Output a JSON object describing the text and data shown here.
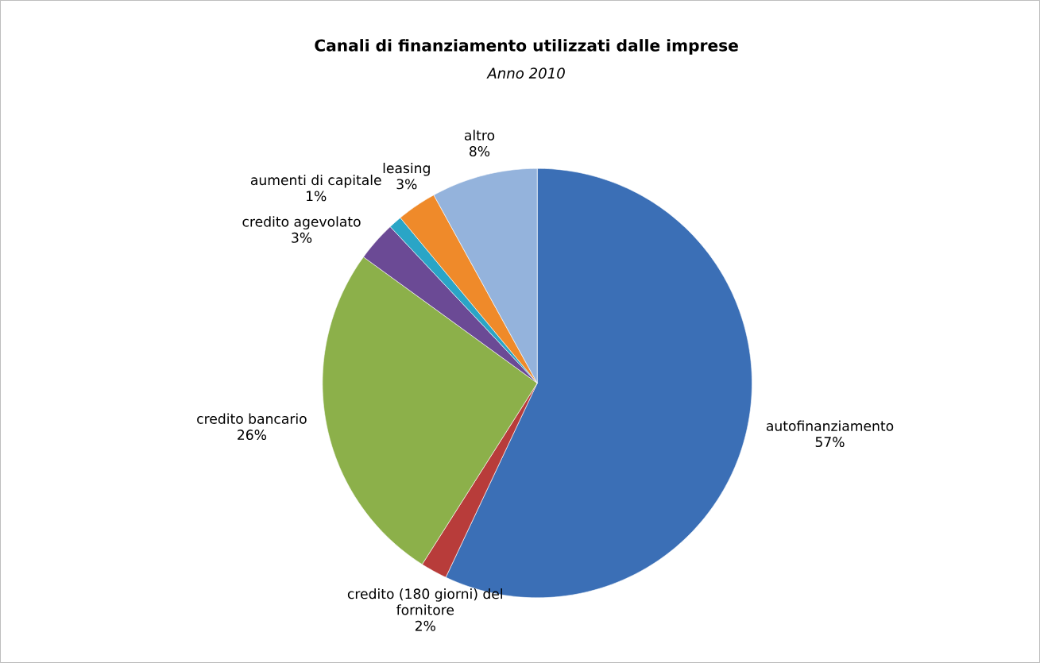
{
  "chart_data": {
    "type": "pie",
    "title": "Canali di finanziamento utilizzati dalle imprese",
    "subtitle": "Anno 2010",
    "categories": [
      "autofinanziamento",
      "credito (180 giorni) del fornitore",
      "credito bancario",
      "credito agevolato",
      "aumenti di capitale",
      "leasing",
      "altro"
    ],
    "values": [
      57,
      2,
      26,
      3,
      1,
      3,
      8
    ],
    "value_labels": [
      "57%",
      "2%",
      "26%",
      "3%",
      "1%",
      "3%",
      "8%"
    ],
    "colors": [
      "#3b6fb6",
      "#b83c3a",
      "#8cb04a",
      "#6b4a95",
      "#2aa5c6",
      "#ef8a2a",
      "#94b3dc"
    ]
  }
}
